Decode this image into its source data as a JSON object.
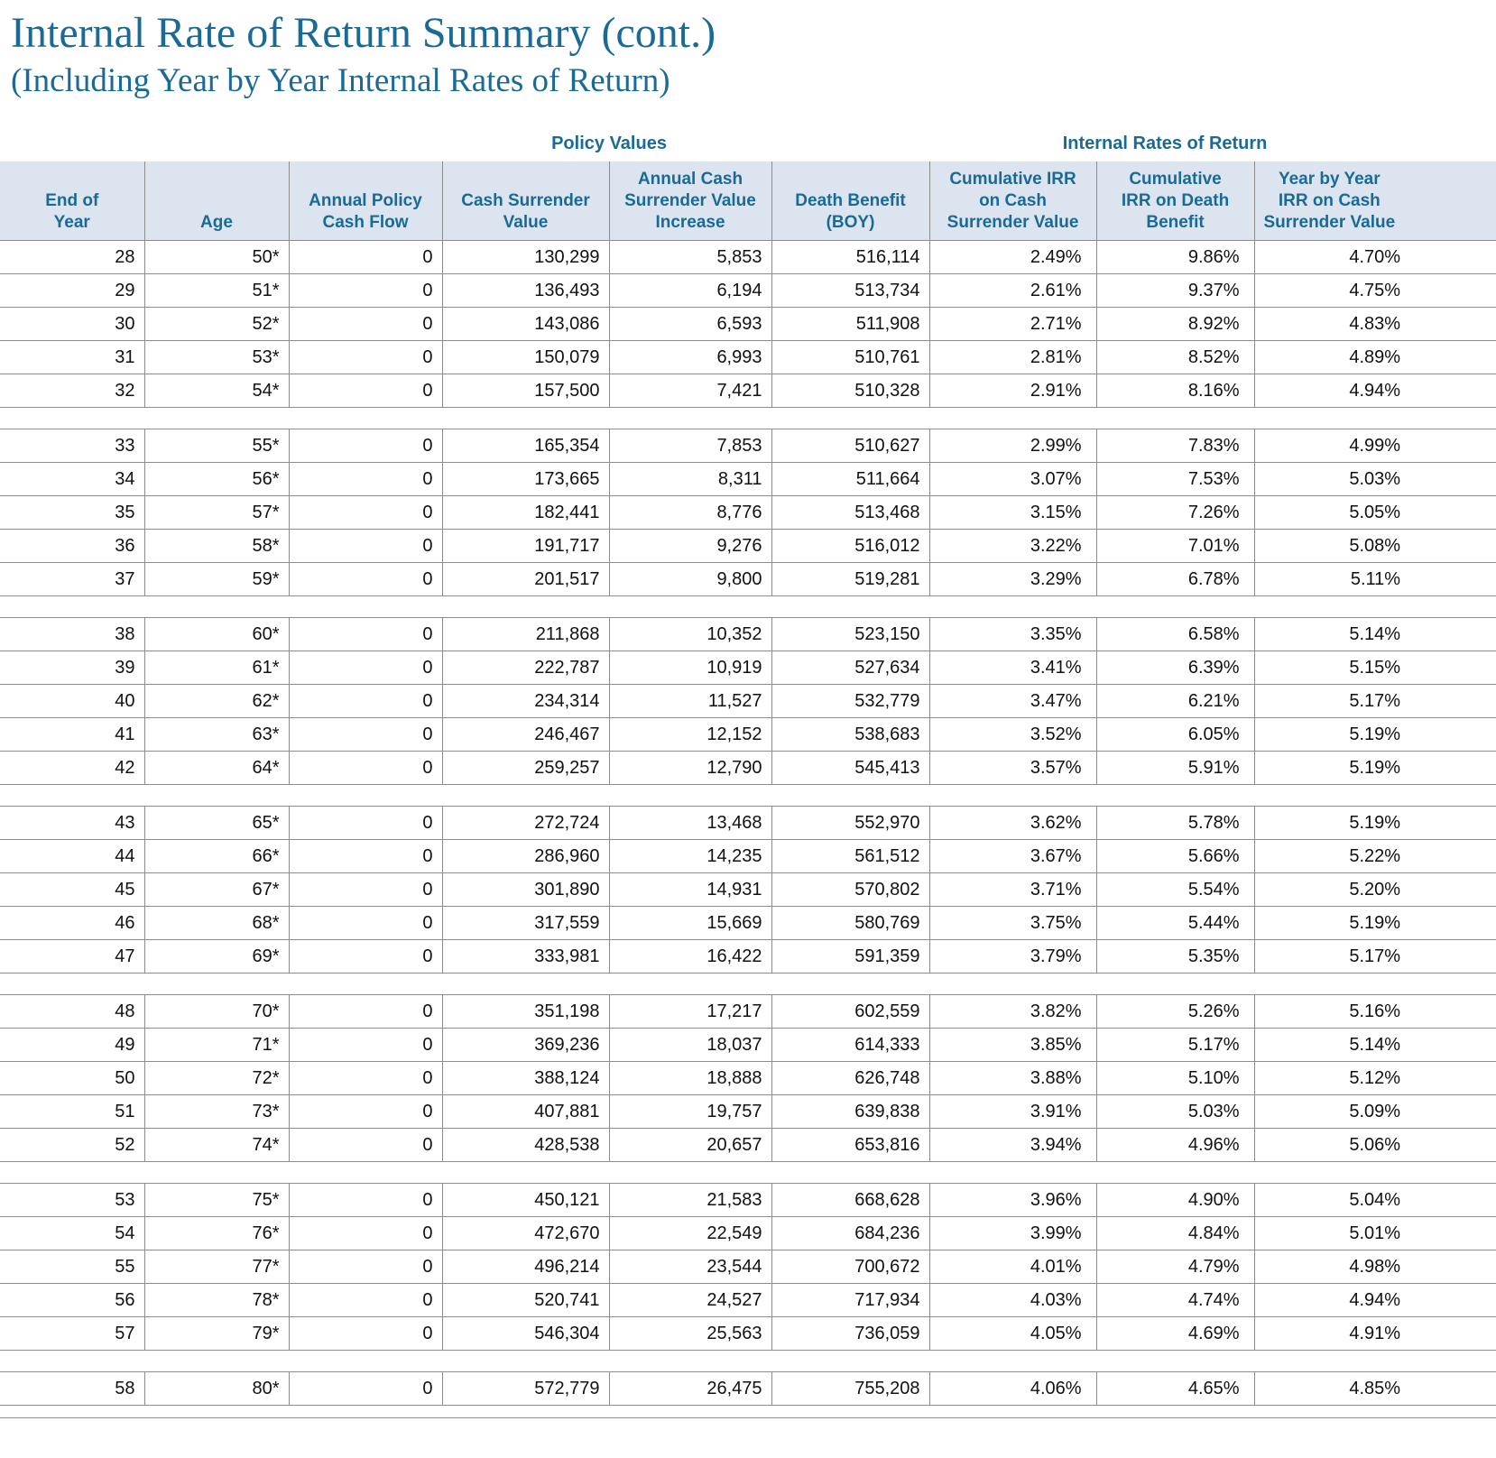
{
  "colors": {
    "accent": "#1A6A96",
    "header_bg": "#DCE4F0",
    "line": "#8C8C8C"
  },
  "page": {
    "title": "Internal Rate of Return Summary (cont.)",
    "subtitle": "(Including Year by Year Internal Rates of Return)"
  },
  "table": {
    "group_headers": {
      "policy_values": "Policy Values",
      "internal_rates": "Internal Rates of Return"
    },
    "columns": [
      "End of\nYear",
      "Age",
      "Annual Policy\nCash Flow",
      "Cash Surrender\nValue",
      "Annual Cash\nSurrender Value\nIncrease",
      "Death Benefit\n(BOY)",
      "Cumulative IRR\non Cash\nSurrender Value",
      "Cumulative\nIRR on Death\nBenefit",
      "Year by Year\nIRR on Cash\nSurrender Value"
    ],
    "row_groups": [
      [
        [
          "28",
          "50*",
          "0",
          "130,299",
          "5,853",
          "516,114",
          "2.49%",
          "9.86%",
          "4.70%"
        ],
        [
          "29",
          "51*",
          "0",
          "136,493",
          "6,194",
          "513,734",
          "2.61%",
          "9.37%",
          "4.75%"
        ],
        [
          "30",
          "52*",
          "0",
          "143,086",
          "6,593",
          "511,908",
          "2.71%",
          "8.92%",
          "4.83%"
        ],
        [
          "31",
          "53*",
          "0",
          "150,079",
          "6,993",
          "510,761",
          "2.81%",
          "8.52%",
          "4.89%"
        ],
        [
          "32",
          "54*",
          "0",
          "157,500",
          "7,421",
          "510,328",
          "2.91%",
          "8.16%",
          "4.94%"
        ]
      ],
      [
        [
          "33",
          "55*",
          "0",
          "165,354",
          "7,853",
          "510,627",
          "2.99%",
          "7.83%",
          "4.99%"
        ],
        [
          "34",
          "56*",
          "0",
          "173,665",
          "8,311",
          "511,664",
          "3.07%",
          "7.53%",
          "5.03%"
        ],
        [
          "35",
          "57*",
          "0",
          "182,441",
          "8,776",
          "513,468",
          "3.15%",
          "7.26%",
          "5.05%"
        ],
        [
          "36",
          "58*",
          "0",
          "191,717",
          "9,276",
          "516,012",
          "3.22%",
          "7.01%",
          "5.08%"
        ],
        [
          "37",
          "59*",
          "0",
          "201,517",
          "9,800",
          "519,281",
          "3.29%",
          "6.78%",
          "5.11%"
        ]
      ],
      [
        [
          "38",
          "60*",
          "0",
          "211,868",
          "10,352",
          "523,150",
          "3.35%",
          "6.58%",
          "5.14%"
        ],
        [
          "39",
          "61*",
          "0",
          "222,787",
          "10,919",
          "527,634",
          "3.41%",
          "6.39%",
          "5.15%"
        ],
        [
          "40",
          "62*",
          "0",
          "234,314",
          "11,527",
          "532,779",
          "3.47%",
          "6.21%",
          "5.17%"
        ],
        [
          "41",
          "63*",
          "0",
          "246,467",
          "12,152",
          "538,683",
          "3.52%",
          "6.05%",
          "5.19%"
        ],
        [
          "42",
          "64*",
          "0",
          "259,257",
          "12,790",
          "545,413",
          "3.57%",
          "5.91%",
          "5.19%"
        ]
      ],
      [
        [
          "43",
          "65*",
          "0",
          "272,724",
          "13,468",
          "552,970",
          "3.62%",
          "5.78%",
          "5.19%"
        ],
        [
          "44",
          "66*",
          "0",
          "286,960",
          "14,235",
          "561,512",
          "3.67%",
          "5.66%",
          "5.22%"
        ],
        [
          "45",
          "67*",
          "0",
          "301,890",
          "14,931",
          "570,802",
          "3.71%",
          "5.54%",
          "5.20%"
        ],
        [
          "46",
          "68*",
          "0",
          "317,559",
          "15,669",
          "580,769",
          "3.75%",
          "5.44%",
          "5.19%"
        ],
        [
          "47",
          "69*",
          "0",
          "333,981",
          "16,422",
          "591,359",
          "3.79%",
          "5.35%",
          "5.17%"
        ]
      ],
      [
        [
          "48",
          "70*",
          "0",
          "351,198",
          "17,217",
          "602,559",
          "3.82%",
          "5.26%",
          "5.16%"
        ],
        [
          "49",
          "71*",
          "0",
          "369,236",
          "18,037",
          "614,333",
          "3.85%",
          "5.17%",
          "5.14%"
        ],
        [
          "50",
          "72*",
          "0",
          "388,124",
          "18,888",
          "626,748",
          "3.88%",
          "5.10%",
          "5.12%"
        ],
        [
          "51",
          "73*",
          "0",
          "407,881",
          "19,757",
          "639,838",
          "3.91%",
          "5.03%",
          "5.09%"
        ],
        [
          "52",
          "74*",
          "0",
          "428,538",
          "20,657",
          "653,816",
          "3.94%",
          "4.96%",
          "5.06%"
        ]
      ],
      [
        [
          "53",
          "75*",
          "0",
          "450,121",
          "21,583",
          "668,628",
          "3.96%",
          "4.90%",
          "5.04%"
        ],
        [
          "54",
          "76*",
          "0",
          "472,670",
          "22,549",
          "684,236",
          "3.99%",
          "4.84%",
          "5.01%"
        ],
        [
          "55",
          "77*",
          "0",
          "496,214",
          "23,544",
          "700,672",
          "4.01%",
          "4.79%",
          "4.98%"
        ],
        [
          "56",
          "78*",
          "0",
          "520,741",
          "24,527",
          "717,934",
          "4.03%",
          "4.74%",
          "4.94%"
        ],
        [
          "57",
          "79*",
          "0",
          "546,304",
          "25,563",
          "736,059",
          "4.05%",
          "4.69%",
          "4.91%"
        ]
      ],
      [
        [
          "58",
          "80*",
          "0",
          "572,779",
          "26,475",
          "755,208",
          "4.06%",
          "4.65%",
          "4.85%"
        ]
      ]
    ]
  }
}
